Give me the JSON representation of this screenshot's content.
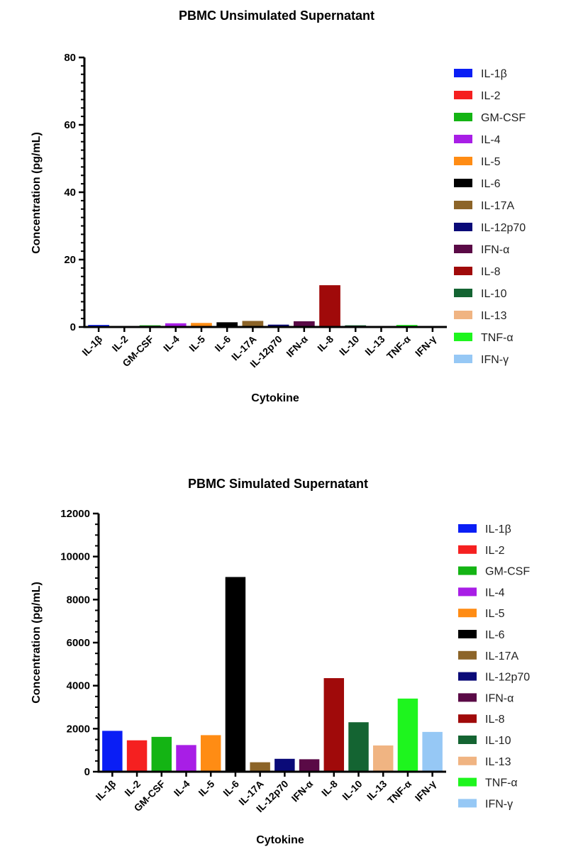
{
  "chart_data": [
    {
      "type": "bar",
      "title": "PBMC Unsimulated Supernatant",
      "xlabel": "Cytokine",
      "ylabel": "Concentration (pg/mL)",
      "ylim": [
        0,
        80
      ],
      "yticks": [
        0,
        20,
        40,
        60,
        80
      ],
      "grid": false,
      "legend": "right",
      "categories": [
        "IL-1β",
        "IL-2",
        "GM-CSF",
        "IL-4",
        "IL-5",
        "IL-6",
        "IL-17A",
        "IL-12p70",
        "IFN-α",
        "IL-8",
        "IL-10",
        "IL-13",
        "TNF-α",
        "IFN-γ"
      ],
      "values": [
        0.6,
        0.2,
        0.5,
        1.1,
        1.2,
        1.4,
        1.8,
        0.7,
        1.7,
        12.4,
        0.5,
        0.2,
        0.6,
        0.2
      ],
      "colors": [
        "#0a1ef5",
        "#f52020",
        "#14b414",
        "#a81ee6",
        "#ff8c14",
        "#000000",
        "#8c6428",
        "#0a0a78",
        "#5a0a46",
        "#a00a0a",
        "#146432",
        "#f0b482",
        "#1ef51e",
        "#96c8f5"
      ]
    },
    {
      "type": "bar",
      "title": "PBMC Simulated Supernatant",
      "xlabel": "Cytokine",
      "ylabel": "Concentration (pg/mL)",
      "ylim": [
        0,
        12000
      ],
      "yticks": [
        0,
        2000,
        4000,
        6000,
        8000,
        10000,
        12000
      ],
      "grid": false,
      "legend": "right",
      "categories": [
        "IL-1β",
        "IL-2",
        "GM-CSF",
        "IL-4",
        "IL-5",
        "IL-6",
        "IL-17A",
        "IL-12p70",
        "IFN-α",
        "IL-8",
        "IL-10",
        "IL-13",
        "TNF-α",
        "IFN-γ"
      ],
      "values": [
        1900,
        1460,
        1620,
        1240,
        1700,
        9050,
        440,
        600,
        580,
        4350,
        2300,
        1220,
        3400,
        1850
      ],
      "colors": [
        "#0a1ef5",
        "#f52020",
        "#14b414",
        "#a81ee6",
        "#ff8c14",
        "#000000",
        "#8c6428",
        "#0a0a78",
        "#5a0a46",
        "#a00a0a",
        "#146432",
        "#f0b482",
        "#1ef51e",
        "#96c8f5"
      ]
    }
  ]
}
